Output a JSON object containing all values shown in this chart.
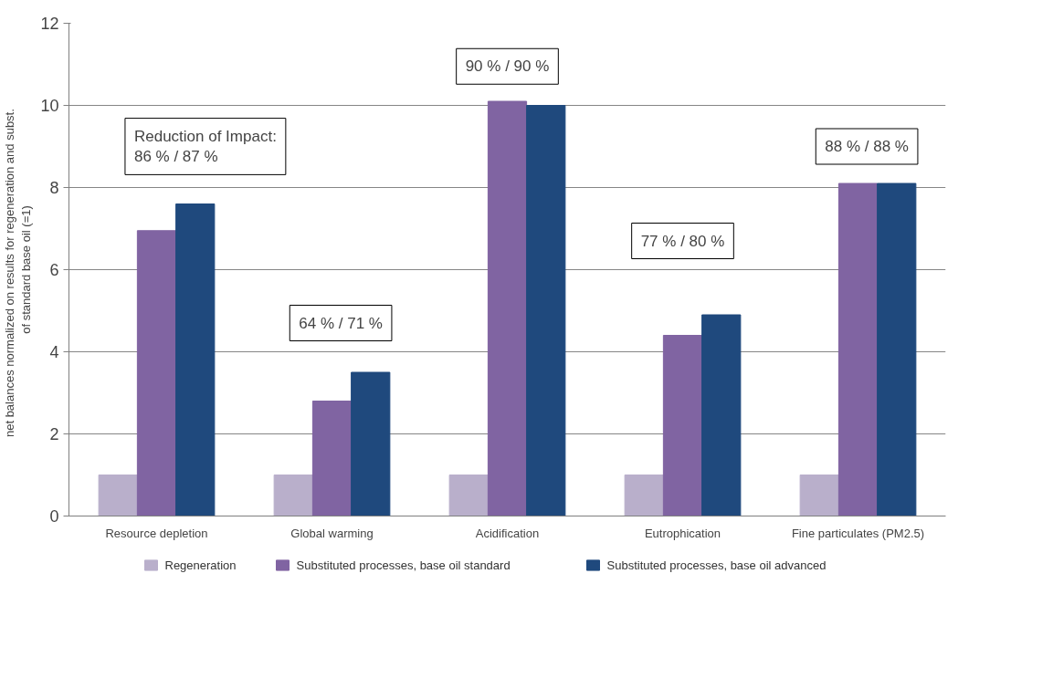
{
  "chart_data": {
    "type": "bar",
    "ylabel": "net balances  normalized  on results for regeneration and subst.\nof standard base oil (=1)",
    "categories": [
      "Resource depletion",
      "Global warming",
      "Acidification",
      "Eutrophication",
      "Fine particulates (PM2.5)"
    ],
    "series": [
      {
        "name": "Regeneration",
        "color": "#b9afcb",
        "values": [
          1,
          1,
          1,
          1,
          1
        ]
      },
      {
        "name": "Substituted processes, base oil standard",
        "color": "#8064a2",
        "values": [
          6.95,
          2.8,
          10.1,
          4.4,
          8.1
        ]
      },
      {
        "name": "Substituted processes, base oil advanced",
        "color": "#1f497d",
        "values": [
          7.6,
          3.5,
          10.0,
          4.9,
          8.1
        ]
      }
    ],
    "ylim": [
      0,
      12
    ],
    "yticks": [
      0,
      2,
      4,
      6,
      8,
      10,
      12
    ],
    "grid": "y",
    "legend": "bottom",
    "annotations": [
      "Reduction of Impact:\n86 % / 87 %",
      "64 % / 71 %",
      "90 % / 90 %",
      "77 % / 80 %",
      "88 % / 88 %"
    ]
  }
}
